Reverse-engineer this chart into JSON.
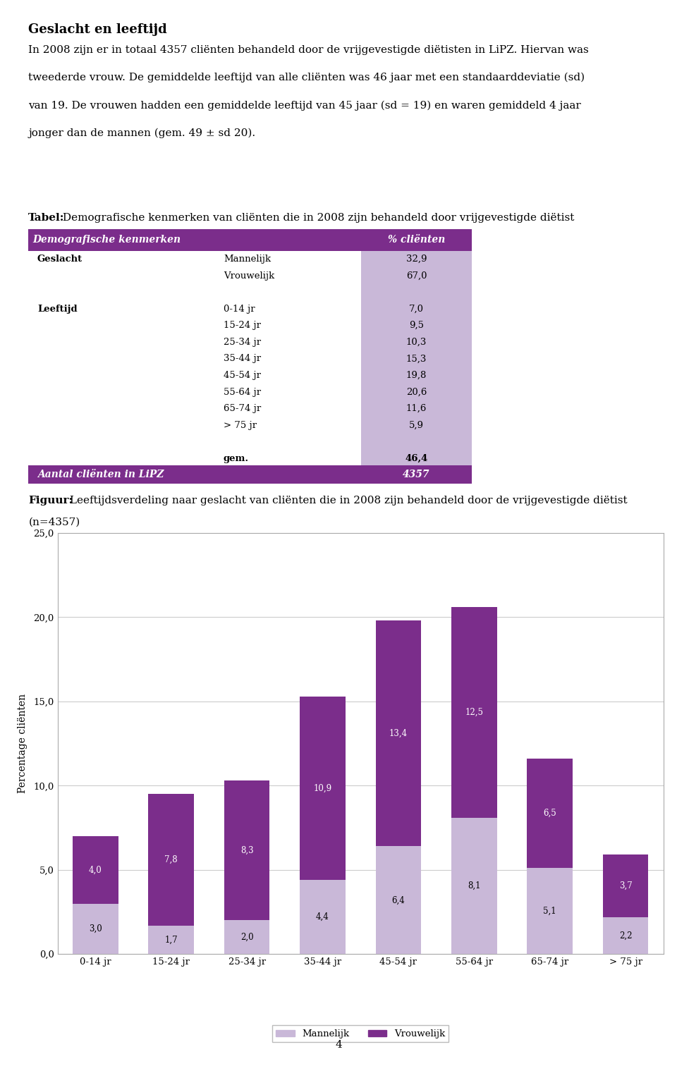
{
  "title_text": "Geslacht en leeftijd",
  "body_line1": "In 2008 zijn er in totaal 4357 cliënten behandeld door de vrijgevestigde diëtisten in LiPZ. Hiervan was",
  "body_line2": "tweederde vrouw. De gemiddelde leeftijd van alle cliënten was 46 jaar met een standaarddeviatie (sd)",
  "body_line3": "van 19. De vrouwen hadden een gemiddelde leeftijd van 45 jaar (sd = 19) en waren gemiddeld 4 jaar",
  "body_line4": "jonger dan de mannen (gem. 49 ± sd 20).",
  "table_caption_bold": "Tabel:",
  "table_caption_rest": " Demografische kenmerken van cliënten die in 2008 zijn behandeld door vrijgevestigde diëtist",
  "table_header": [
    "Demografische kenmerken",
    "% cliënten"
  ],
  "table_rows": [
    [
      "Geslacht",
      "Mannelijk",
      "32,9"
    ],
    [
      "",
      "Vrouwelijk",
      "67,0"
    ],
    [
      "",
      "",
      ""
    ],
    [
      "Leeftijd",
      "0-14 jr",
      "7,0"
    ],
    [
      "",
      "15-24 jr",
      "9,5"
    ],
    [
      "",
      "25-34 jr",
      "10,3"
    ],
    [
      "",
      "35-44 jr",
      "15,3"
    ],
    [
      "",
      "45-54 jr",
      "19,8"
    ],
    [
      "",
      "55-64 jr",
      "20,6"
    ],
    [
      "",
      "65-74 jr",
      "11,6"
    ],
    [
      "",
      "> 75 jr",
      "5,9"
    ],
    [
      "",
      "",
      ""
    ],
    [
      "",
      "gem.",
      "46,4"
    ]
  ],
  "table_footer": [
    "Aantal cliënten in LiPZ",
    "4357"
  ],
  "fig_caption_bold": "Figuur:",
  "fig_caption_rest": " Leeftijdsverdeling naar geslacht van cliënten die in 2008 zijn behandeld door de vrijgevestigde diëtist",
  "fig_caption_line2": "(n=4357)",
  "categories": [
    "0-14 jr",
    "15-24 jr",
    "25-34 jr",
    "35-44 jr",
    "45-54 jr",
    "55-64 jr",
    "65-74 jr",
    "> 75 jr"
  ],
  "mannelijk": [
    3.0,
    1.7,
    2.0,
    4.4,
    6.4,
    8.1,
    5.1,
    2.2
  ],
  "vrouwelijk": [
    4.0,
    7.8,
    8.3,
    10.9,
    13.4,
    12.5,
    6.5,
    3.7
  ],
  "color_mannelijk": "#c9b8d8",
  "color_vrouwelijk": "#7b2d8b",
  "ylabel": "Percentage cliënten",
  "ylim": [
    0,
    25
  ],
  "yticks": [
    0.0,
    5.0,
    10.0,
    15.0,
    20.0,
    25.0
  ],
  "header_bg": "#7b2d8b",
  "header_fg": "#ffffff",
  "row_bg": "#c9b8d8",
  "footer_bg": "#7b2d8b",
  "footer_fg": "#ffffff",
  "background_color": "#ffffff",
  "page_number": "4"
}
